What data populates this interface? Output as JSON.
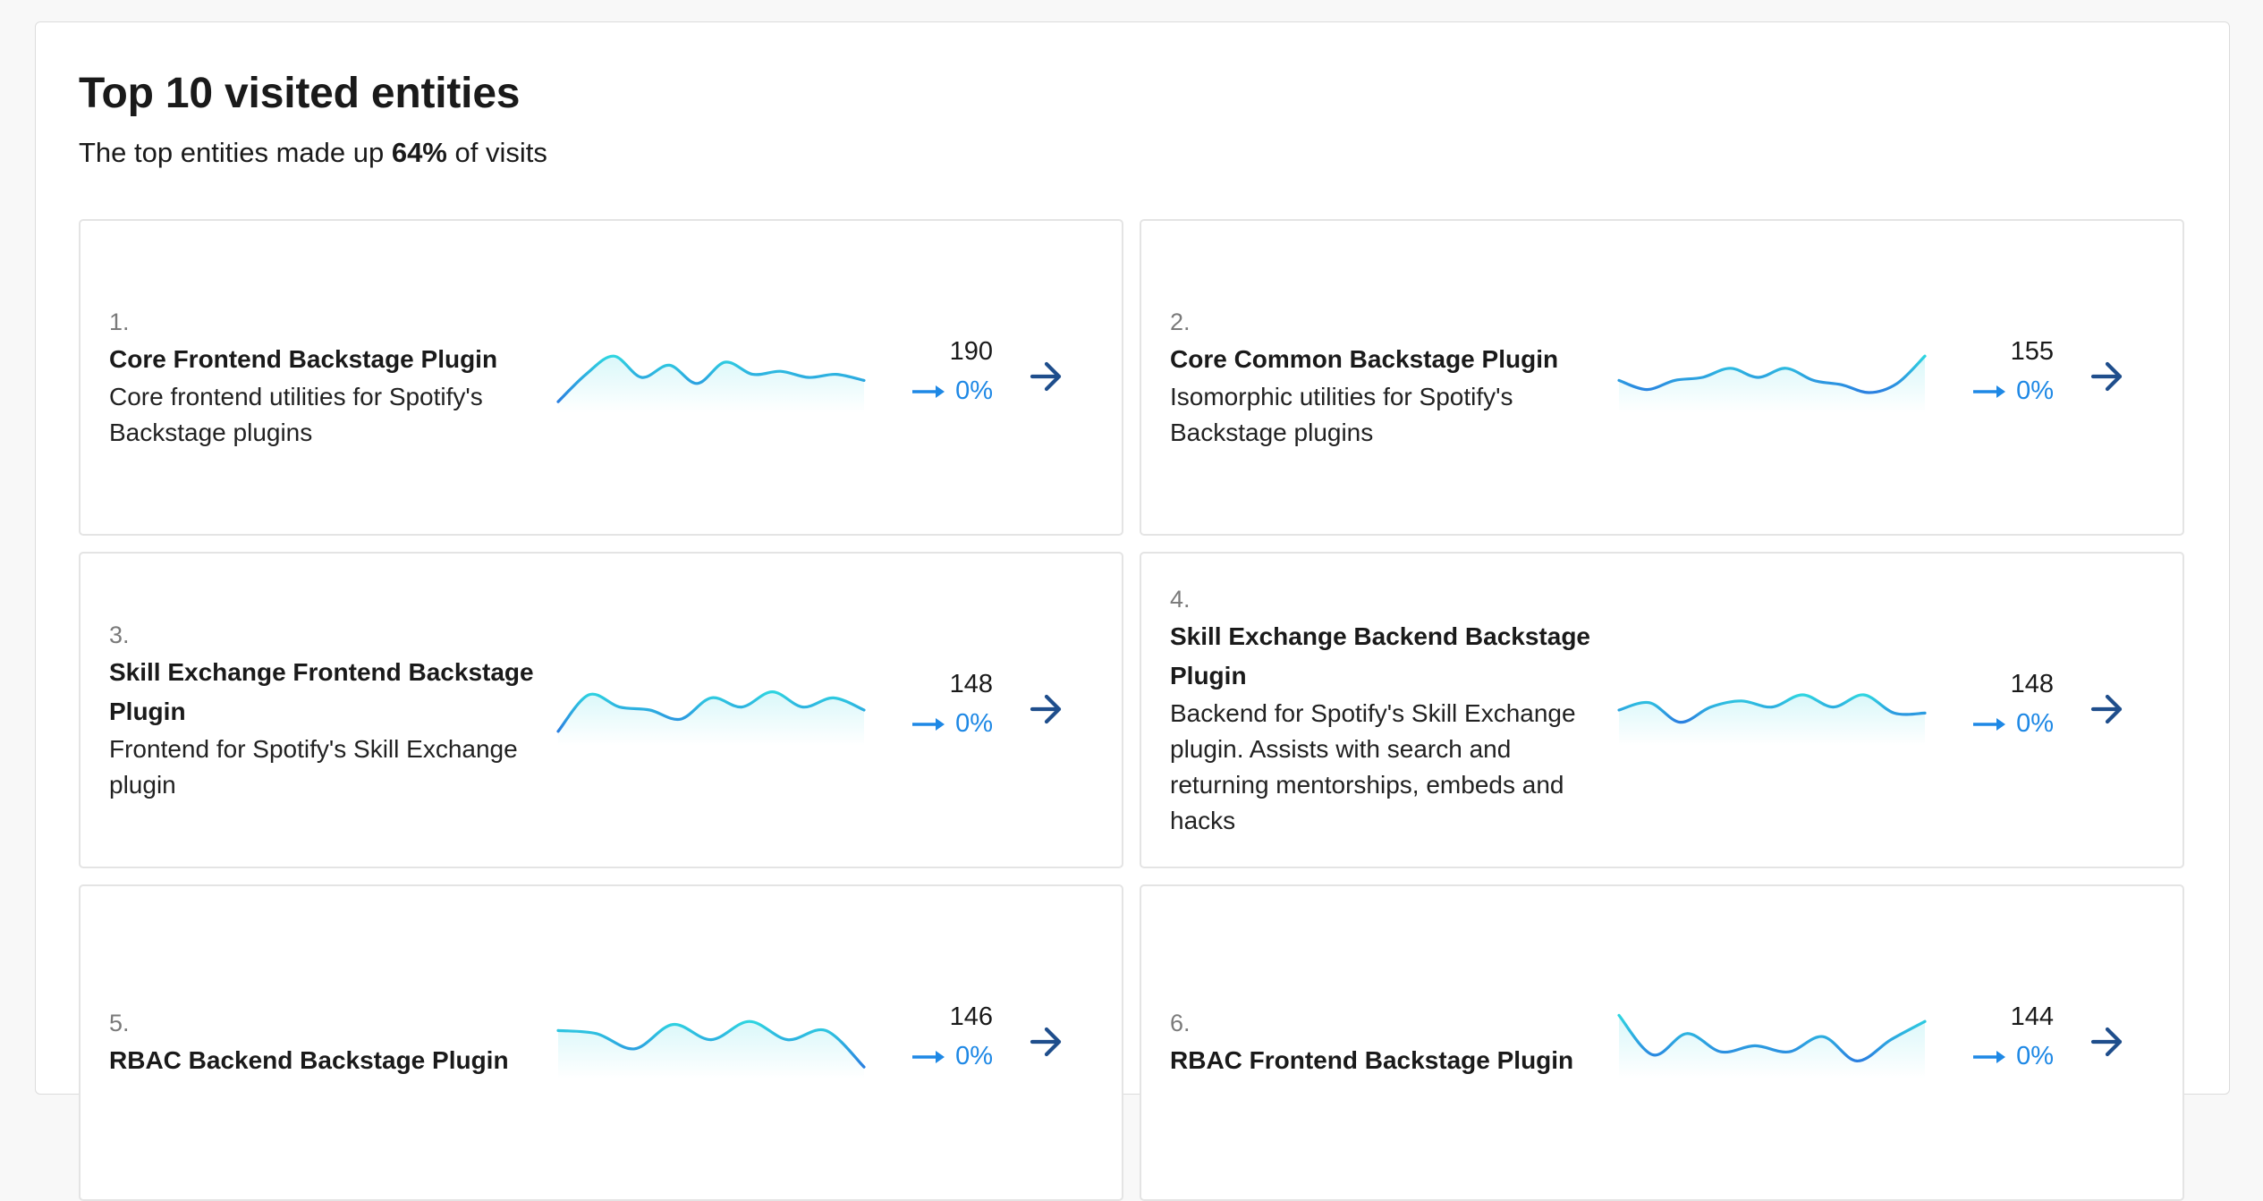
{
  "header": {
    "title": "Top 10 visited entities",
    "subtitle_prefix": "The top entities made up ",
    "subtitle_percent": "64%",
    "subtitle_suffix": " of visits"
  },
  "colors": {
    "accent": "#1e88e5",
    "arrow": "#1f4e8c",
    "spark_start": "#2a7fe0",
    "spark_end": "#2fd5e0"
  },
  "icons": {
    "trend": "trending-flat-icon",
    "open": "arrow-forward-icon"
  },
  "entities": [
    {
      "rank": "1.",
      "name": "Core Frontend Backstage Plugin",
      "description": "Core frontend utilities for Spotify's Backstage plugins",
      "count": "190",
      "change": "0%",
      "trend": [
        0.1,
        0.55,
        0.85,
        0.5,
        0.7,
        0.4,
        0.75,
        0.55,
        0.6,
        0.5,
        0.55,
        0.45
      ]
    },
    {
      "rank": "2.",
      "name": "Core Common Backstage Plugin",
      "description": "Isomorphic utilities for Spotify's Backstage plugins",
      "count": "155",
      "change": "0%",
      "trend": [
        0.45,
        0.3,
        0.45,
        0.5,
        0.65,
        0.5,
        0.65,
        0.45,
        0.38,
        0.25,
        0.4,
        0.85
      ]
    },
    {
      "rank": "3.",
      "name": "Skill Exchange Frontend Backstage Plugin",
      "description": "Frontend for Spotify's Skill Exchange plugin",
      "count": "148",
      "change": "0%",
      "trend": [
        0.15,
        0.75,
        0.55,
        0.5,
        0.35,
        0.7,
        0.55,
        0.8,
        0.55,
        0.7,
        0.5
      ]
    },
    {
      "rank": "4.",
      "name": "Skill Exchange Backend Backstage Plugin",
      "description": "Backend for Spotify's Skill Exchange plugin. Assists with search and returning mentorships, embeds and hacks",
      "count": "148",
      "change": "0%",
      "trend": [
        0.5,
        0.62,
        0.3,
        0.55,
        0.65,
        0.55,
        0.75,
        0.55,
        0.75,
        0.45,
        0.45
      ]
    },
    {
      "rank": "5.",
      "name": "RBAC Backend Backstage Plugin",
      "description": "",
      "count": "146",
      "change": "0%",
      "trend": [
        0.7,
        0.65,
        0.4,
        0.8,
        0.55,
        0.85,
        0.55,
        0.7,
        0.1
      ]
    },
    {
      "rank": "6.",
      "name": "RBAC Frontend Backstage Plugin",
      "description": "",
      "count": "144",
      "change": "0%",
      "trend": [
        0.95,
        0.3,
        0.65,
        0.35,
        0.45,
        0.35,
        0.6,
        0.2,
        0.55,
        0.85
      ]
    }
  ]
}
